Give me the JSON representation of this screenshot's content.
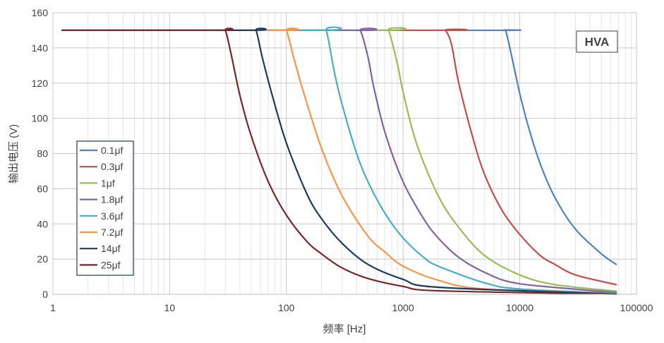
{
  "chart_data": {
    "type": "line",
    "title": "",
    "xlabel": "频率 [Hz]",
    "ylabel": "输出电压 (V)",
    "xscale": "log",
    "xlim": [
      1,
      100000
    ],
    "ylim": [
      0,
      160
    ],
    "x_ticks": [
      1,
      10,
      100,
      1000,
      10000,
      100000
    ],
    "x_tick_labels": [
      "1",
      "10",
      "100",
      "1000",
      "10000",
      "100000"
    ],
    "y_ticks": [
      0,
      20,
      40,
      60,
      80,
      100,
      120,
      140,
      160
    ],
    "y_tick_labels": [
      "0",
      "20",
      "40",
      "60",
      "80",
      "100",
      "120",
      "140",
      "160"
    ],
    "grid": true,
    "legend_position": "left",
    "annotation": "HVA",
    "series": [
      {
        "name": "0.1μf",
        "color": "#4f81bd",
        "x": [
          1.2,
          5000,
          7200,
          7700,
          9000,
          10000,
          12000,
          15000,
          20000,
          30000,
          50000,
          67000
        ],
        "y": [
          150,
          150,
          150,
          148,
          128,
          114,
          94,
          74,
          55,
          37,
          23,
          17
        ]
      },
      {
        "name": "0.3μf",
        "color": "#c0504d",
        "x": [
          1.2,
          2000,
          2300,
          2600,
          3000,
          4000,
          5000,
          7000,
          10000,
          15000,
          20000,
          30000,
          67000
        ],
        "y": [
          150,
          150,
          150,
          142,
          120,
          88,
          68,
          48,
          34,
          22,
          17,
          11,
          5.5
        ]
      },
      {
        "name": "1μf",
        "color": "#9bbb59",
        "x": [
          1.2,
          650,
          750,
          900,
          1000,
          1300,
          2000,
          3000,
          5000,
          10000,
          20000,
          67000
        ],
        "y": [
          150,
          150,
          150,
          130,
          115,
          86,
          56,
          38,
          22,
          11,
          5.5,
          1.8
        ]
      },
      {
        "name": "1.8μf",
        "color": "#8064a2",
        "x": [
          1.2,
          380,
          430,
          500,
          560,
          700,
          1000,
          1500,
          2000,
          3000,
          5000,
          10000,
          67000
        ],
        "y": [
          150,
          150,
          150,
          135,
          118,
          92,
          64,
          43,
          32,
          21,
          12.5,
          6,
          1
        ]
      },
      {
        "name": "3.6μf",
        "color": "#4bacc6",
        "x": [
          1.2,
          200,
          220,
          260,
          300,
          400,
          500,
          700,
          1000,
          1500,
          2000,
          5000,
          10000,
          67000
        ],
        "y": [
          150,
          150,
          150,
          125,
          108,
          80,
          64,
          46,
          32,
          21,
          16,
          6.5,
          3,
          0.6
        ]
      },
      {
        "name": "7.2μf",
        "color": "#f79646",
        "x": [
          1.2,
          90,
          100,
          115,
          140,
          200,
          300,
          500,
          700,
          1000,
          2000,
          5000,
          67000
        ],
        "y": [
          150,
          150,
          150,
          135,
          115,
          83,
          56,
          33,
          24,
          16,
          8,
          3,
          0.3
        ]
      },
      {
        "name": "14μf",
        "color": "#1f3b5c",
        "x": [
          1.2,
          50,
          55,
          62,
          75,
          100,
          150,
          200,
          300,
          500,
          1000,
          2000,
          67000
        ],
        "y": [
          150,
          150,
          150,
          135,
          114,
          86,
          57,
          43,
          29,
          17,
          8.5,
          4,
          0.2
        ]
      },
      {
        "name": "25μf",
        "color": "#76272a",
        "x": [
          1.2,
          27,
          30,
          34,
          40,
          50,
          70,
          100,
          150,
          200,
          300,
          500,
          1000,
          2000,
          67000
        ],
        "y": [
          150,
          150,
          150,
          135,
          113,
          90,
          64,
          45,
          30,
          23,
          15,
          9,
          4.5,
          2,
          0.1
        ]
      }
    ]
  }
}
